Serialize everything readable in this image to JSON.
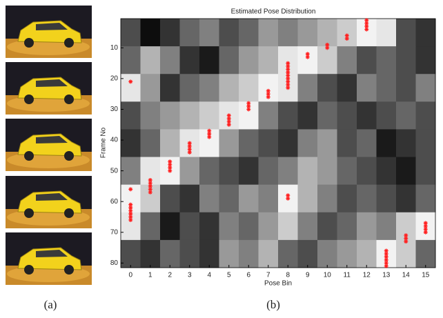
{
  "chart_data": {
    "type": "heatmap",
    "title": "Estimated Pose Distribution",
    "xlabel": "Pose Bin",
    "ylabel": "Frame No",
    "panel_labels": [
      "(a)",
      "(b)"
    ],
    "xlim": [
      -0.5,
      15.5
    ],
    "ylim": [
      0.5,
      81.5
    ],
    "xticks": [
      0,
      1,
      2,
      3,
      4,
      5,
      6,
      7,
      8,
      9,
      10,
      11,
      12,
      13,
      14,
      15
    ],
    "yticks": [
      10,
      20,
      30,
      40,
      50,
      60,
      70,
      80
    ],
    "z": [
      [
        0.3,
        0.05,
        0.2,
        0.4,
        0.5,
        0.3,
        0.4,
        0.6,
        0.5,
        0.6,
        0.7,
        0.8,
        0.95,
        0.9,
        0.3,
        0.2
      ],
      [
        0.4,
        0.7,
        0.5,
        0.2,
        0.1,
        0.4,
        0.6,
        0.7,
        0.9,
        0.95,
        0.8,
        0.5,
        0.3,
        0.4,
        0.3,
        0.2
      ],
      [
        0.9,
        0.6,
        0.2,
        0.4,
        0.5,
        0.7,
        0.8,
        0.95,
        0.9,
        0.5,
        0.3,
        0.2,
        0.5,
        0.4,
        0.3,
        0.5
      ],
      [
        0.3,
        0.5,
        0.6,
        0.7,
        0.8,
        0.9,
        0.95,
        0.5,
        0.3,
        0.2,
        0.4,
        0.3,
        0.2,
        0.3,
        0.4,
        0.3
      ],
      [
        0.2,
        0.4,
        0.7,
        0.9,
        0.95,
        0.6,
        0.4,
        0.3,
        0.2,
        0.5,
        0.6,
        0.3,
        0.4,
        0.1,
        0.2,
        0.3
      ],
      [
        0.5,
        0.9,
        0.95,
        0.6,
        0.4,
        0.3,
        0.2,
        0.4,
        0.5,
        0.7,
        0.6,
        0.4,
        0.3,
        0.2,
        0.1,
        0.3
      ],
      [
        0.95,
        0.8,
        0.3,
        0.2,
        0.5,
        0.4,
        0.6,
        0.5,
        0.95,
        0.7,
        0.5,
        0.3,
        0.4,
        0.3,
        0.2,
        0.4
      ],
      [
        0.9,
        0.4,
        0.1,
        0.3,
        0.2,
        0.5,
        0.4,
        0.6,
        0.8,
        0.5,
        0.3,
        0.4,
        0.6,
        0.5,
        0.8,
        0.95
      ],
      [
        0.3,
        0.2,
        0.4,
        0.3,
        0.2,
        0.6,
        0.5,
        0.7,
        0.4,
        0.3,
        0.5,
        0.6,
        0.7,
        0.95,
        0.8,
        0.4
      ]
    ],
    "points": {
      "color": "#ff2020",
      "x": [
        0,
        0,
        0,
        0,
        0,
        0,
        0,
        0,
        1,
        1,
        1,
        1,
        1,
        2,
        2,
        2,
        2,
        3,
        3,
        3,
        3,
        4,
        4,
        4,
        5,
        5,
        5,
        5,
        6,
        6,
        6,
        7,
        7,
        7,
        8,
        8,
        8,
        8,
        8,
        8,
        8,
        8,
        8,
        8,
        8,
        9,
        9,
        10,
        10,
        11,
        11,
        12,
        12,
        12,
        12,
        13,
        13,
        13,
        13,
        13,
        13,
        14,
        14,
        14,
        15,
        15,
        15,
        15
      ],
      "y": [
        21,
        56,
        61,
        62,
        63,
        64,
        65,
        66,
        53,
        54,
        55,
        56,
        57,
        47,
        48,
        49,
        50,
        41,
        42,
        43,
        44,
        37,
        38,
        39,
        32,
        33,
        34,
        35,
        28,
        29,
        30,
        24,
        25,
        26,
        15,
        16,
        17,
        18,
        19,
        20,
        21,
        22,
        23,
        58,
        59,
        12,
        13,
        9,
        10,
        6,
        7,
        1,
        2,
        3,
        4,
        76,
        77,
        78,
        79,
        80,
        81,
        71,
        72,
        73,
        67,
        68,
        69,
        70
      ]
    }
  }
}
